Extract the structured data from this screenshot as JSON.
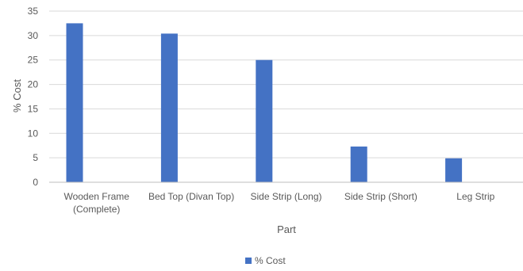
{
  "chart_data": {
    "type": "bar",
    "categories": [
      [
        "Wooden Frame",
        "(Complete)"
      ],
      [
        "Bed Top (Divan Top)"
      ],
      [
        "Side Strip (Long)"
      ],
      [
        "Side Strip (Short)"
      ],
      [
        "Leg Strip"
      ]
    ],
    "series": [
      {
        "name": "% Cost",
        "values": [
          32.5,
          30.4,
          25.0,
          7.3,
          4.9
        ]
      }
    ],
    "xlabel": "Part",
    "ylabel": "% Cost",
    "ylim": [
      0,
      35
    ],
    "yticks": [
      0,
      5,
      10,
      15,
      20,
      25,
      30,
      35
    ],
    "grid": true,
    "legend_position": "bottom-center",
    "colors": {
      "bar": "#4472C4",
      "grid": "#D9D9D9",
      "axis": "#BFBFBF",
      "text": "#595959"
    }
  }
}
